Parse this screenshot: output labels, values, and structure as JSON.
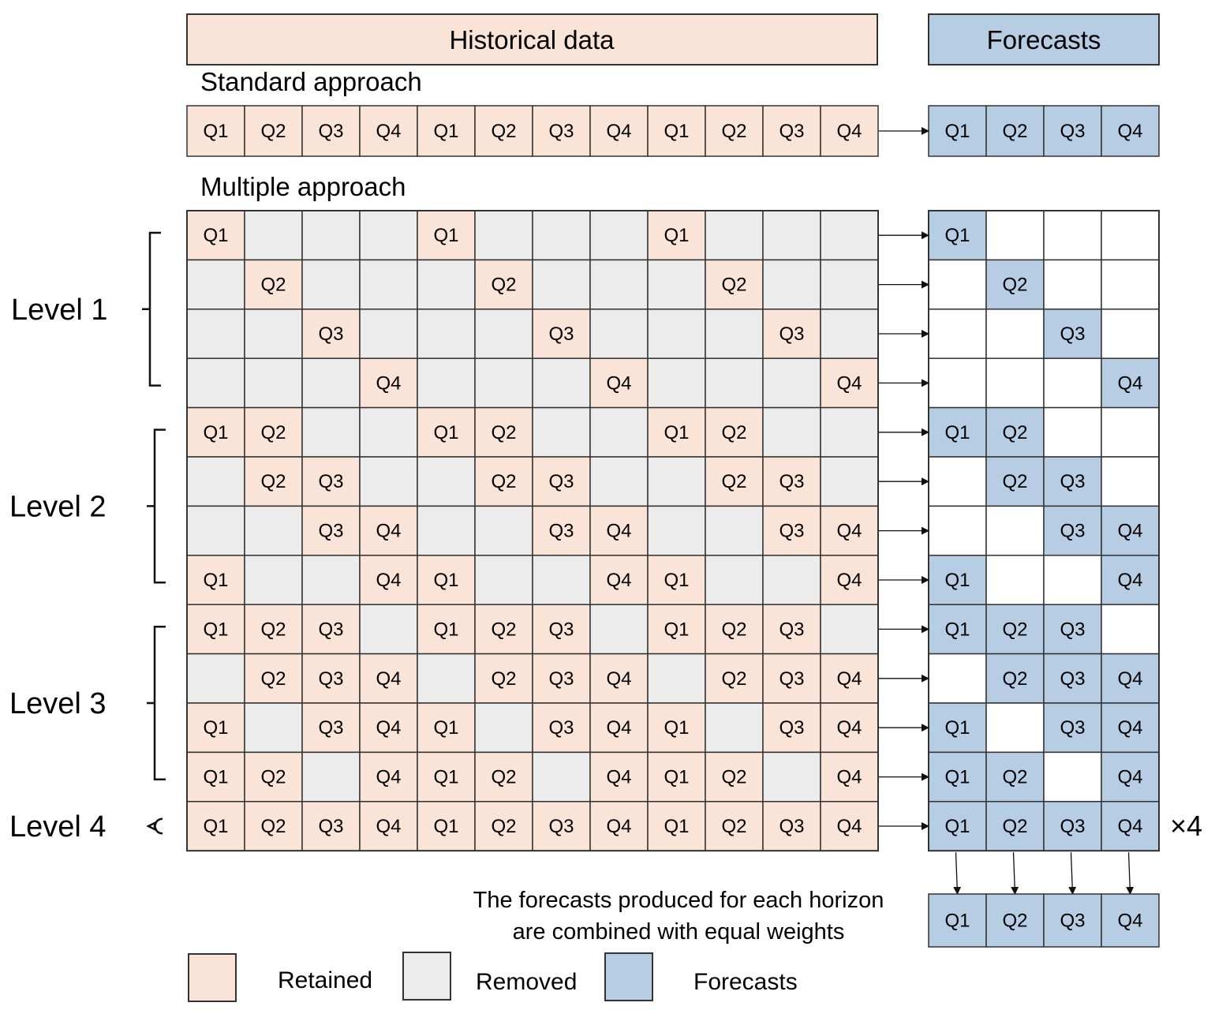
{
  "header": {
    "historical_label": "Historical data",
    "forecasts_label": "Forecasts"
  },
  "standard": {
    "title": "Standard approach",
    "history": [
      "Q1",
      "Q2",
      "Q3",
      "Q4",
      "Q1",
      "Q2",
      "Q3",
      "Q4",
      "Q1",
      "Q2",
      "Q3",
      "Q4"
    ],
    "forecasts": [
      "Q1",
      "Q2",
      "Q3",
      "Q4"
    ]
  },
  "multiple": {
    "title": "Multiple approach",
    "quarters": [
      "Q1",
      "Q2",
      "Q3",
      "Q4"
    ],
    "levels": [
      {
        "label": "Level 1",
        "rows": [
          [
            1,
            0,
            0,
            0
          ],
          [
            0,
            1,
            0,
            0
          ],
          [
            0,
            0,
            1,
            0
          ],
          [
            0,
            0,
            0,
            1
          ]
        ]
      },
      {
        "label": "Level 2",
        "rows": [
          [
            1,
            1,
            0,
            0
          ],
          [
            0,
            1,
            1,
            0
          ],
          [
            0,
            0,
            1,
            1
          ],
          [
            1,
            0,
            0,
            1
          ]
        ]
      },
      {
        "label": "Level 3",
        "rows": [
          [
            1,
            1,
            1,
            0
          ],
          [
            0,
            1,
            1,
            1
          ],
          [
            1,
            0,
            1,
            1
          ],
          [
            1,
            1,
            0,
            1
          ]
        ]
      },
      {
        "label": "Level 4",
        "rows": [
          [
            1,
            1,
            1,
            1
          ]
        ]
      }
    ],
    "multiplier": "×4"
  },
  "combined": {
    "note_line1": "The forecasts produced for each horizon",
    "note_line2": "are combined with equal weights",
    "forecasts": [
      "Q1",
      "Q2",
      "Q3",
      "Q4"
    ]
  },
  "legend": [
    {
      "key": "retained",
      "label": "Retained",
      "color": "#f9e4d7"
    },
    {
      "key": "removed",
      "label": "Removed",
      "color": "#ececec"
    },
    {
      "key": "forecasts",
      "label": "Forecasts",
      "color": "#b7cde4"
    }
  ],
  "colors": {
    "retained": "#f9e4d7",
    "removed": "#ececec",
    "forecast": "#b7cde4",
    "empty": "#ffffff",
    "border": "#333333"
  }
}
